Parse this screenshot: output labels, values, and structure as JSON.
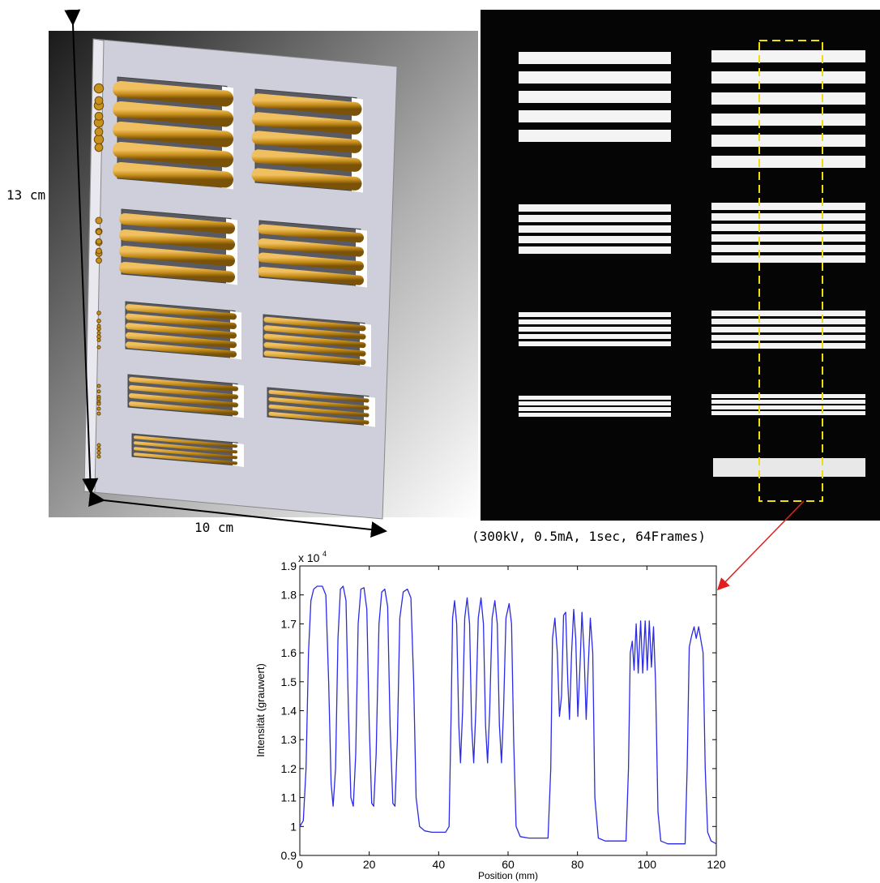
{
  "labels": {
    "height": "13 cm",
    "width": "10 cm",
    "settings": "(300kV, 0.5mA, 1sec, 64Frames)"
  },
  "chart_data": {
    "type": "line",
    "xlabel": "Position (mm)",
    "ylabel": "Intensität (grauwert)",
    "y_multiplier": "x 10",
    "y_multiplier_exponent": "4",
    "xlim": [
      0,
      120
    ],
    "xticks": [
      0,
      20,
      40,
      60,
      80,
      100,
      120
    ],
    "ylim": [
      0.9,
      1.9
    ],
    "yticks": [
      0.9,
      1,
      1.1,
      1.2,
      1.3,
      1.4,
      1.5,
      1.6,
      1.7,
      1.8,
      1.9
    ],
    "series": [
      {
        "color": "#2a2ae8",
        "x": [
          0,
          1,
          1.8,
          2.5,
          3.2,
          4,
          5,
          6.5,
          7.5,
          8.3,
          9,
          9.6,
          10.3,
          11,
          11.7,
          12.5,
          13.3,
          14,
          14.7,
          15.4,
          16.1,
          16.8,
          17.6,
          18.5,
          19.3,
          20,
          20.7,
          21.3,
          22,
          22.8,
          23.6,
          24.5,
          25.3,
          26,
          26.8,
          27.4,
          28.1,
          28.8,
          29.8,
          31,
          32,
          32.8,
          33.5,
          34.5,
          36,
          38,
          42,
          43,
          43.6,
          44,
          44.6,
          45.2,
          45.8,
          46.3,
          46.9,
          47.5,
          48.2,
          48.9,
          49.5,
          50.1,
          50.7,
          51.4,
          52.2,
          52.9,
          53.5,
          54.1,
          54.7,
          55.4,
          56.2,
          56.9,
          57.5,
          58.1,
          58.7,
          59.4,
          60.3,
          61,
          61.6,
          62.3,
          63.5,
          66,
          71.5,
          72.3,
          72.8,
          73.5,
          74.2,
          74.8,
          75.4,
          76,
          76.6,
          77.2,
          77.7,
          78.3,
          78.9,
          79.5,
          80.1,
          80.7,
          81.3,
          81.9,
          82.5,
          83.1,
          83.7,
          84.4,
          85,
          86,
          88,
          94,
          94.7,
          95.2,
          95.8,
          96.3,
          96.9,
          97.5,
          98.2,
          98.8,
          99.5,
          100.1,
          100.7,
          101.3,
          101.9,
          102.5,
          103.2,
          104,
          106,
          111,
          111.6,
          112.2,
          112.9,
          113.6,
          114.2,
          114.9,
          115.6,
          116.2,
          116.8,
          117.5,
          118.5,
          120
        ],
        "values": [
          1.0,
          1.02,
          1.2,
          1.6,
          1.78,
          1.82,
          1.83,
          1.83,
          1.8,
          1.5,
          1.15,
          1.07,
          1.2,
          1.65,
          1.82,
          1.83,
          1.78,
          1.4,
          1.1,
          1.07,
          1.25,
          1.7,
          1.82,
          1.825,
          1.75,
          1.35,
          1.08,
          1.07,
          1.25,
          1.7,
          1.81,
          1.82,
          1.76,
          1.35,
          1.08,
          1.07,
          1.3,
          1.72,
          1.81,
          1.82,
          1.79,
          1.5,
          1.1,
          1.0,
          0.985,
          0.98,
          0.98,
          1.0,
          1.4,
          1.72,
          1.78,
          1.7,
          1.35,
          1.22,
          1.4,
          1.72,
          1.79,
          1.7,
          1.35,
          1.22,
          1.4,
          1.72,
          1.79,
          1.7,
          1.35,
          1.22,
          1.4,
          1.72,
          1.78,
          1.7,
          1.35,
          1.22,
          1.4,
          1.72,
          1.77,
          1.7,
          1.3,
          1.0,
          0.965,
          0.96,
          0.96,
          1.2,
          1.65,
          1.72,
          1.6,
          1.38,
          1.45,
          1.73,
          1.74,
          1.5,
          1.37,
          1.6,
          1.75,
          1.65,
          1.38,
          1.55,
          1.74,
          1.6,
          1.37,
          1.55,
          1.72,
          1.6,
          1.1,
          0.96,
          0.95,
          0.95,
          1.2,
          1.6,
          1.64,
          1.54,
          1.7,
          1.53,
          1.71,
          1.53,
          1.71,
          1.54,
          1.71,
          1.55,
          1.69,
          1.5,
          1.05,
          0.95,
          0.94,
          0.94,
          1.2,
          1.62,
          1.66,
          1.69,
          1.65,
          1.69,
          1.64,
          1.6,
          1.2,
          0.98,
          0.95,
          0.94
        ]
      }
    ]
  }
}
